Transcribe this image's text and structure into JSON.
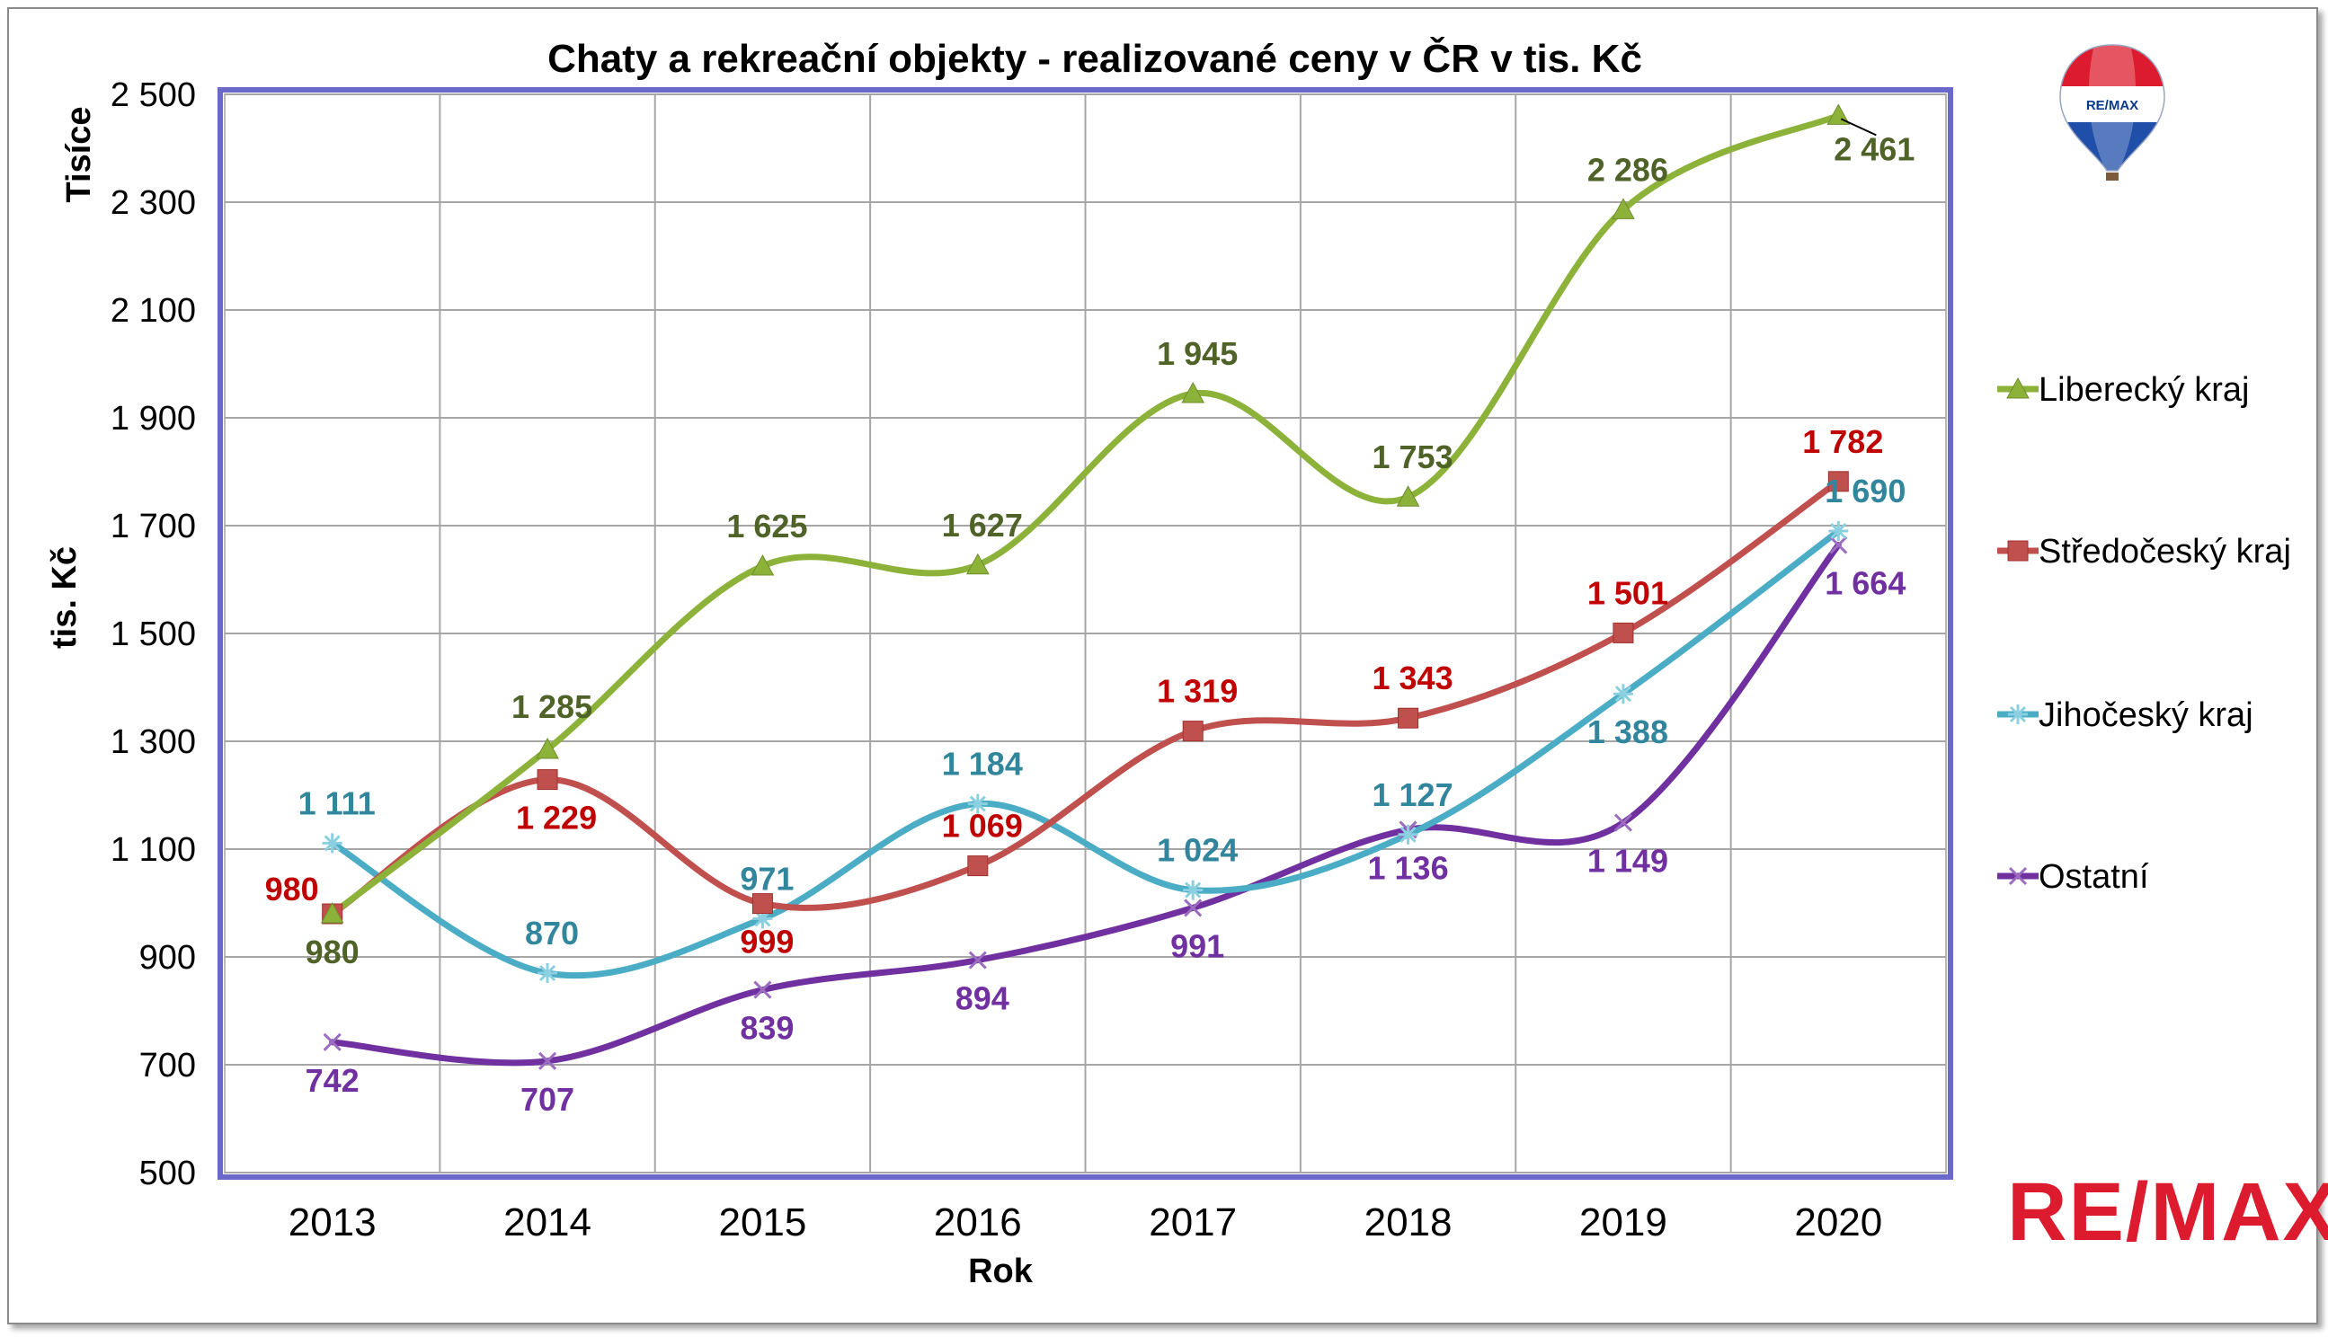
{
  "chart_data": {
    "type": "line",
    "title": "Chaty a rekreační objekty - realizované ceny v ČR v tis. Kč",
    "ylabel": "tis. Kč",
    "yunit_label": "Tisíce",
    "xlabel": "Rok",
    "ylim": [
      500,
      2500
    ],
    "yticks": [
      500,
      700,
      900,
      1100,
      1300,
      1500,
      1700,
      1900,
      2100,
      2300,
      2500
    ],
    "ytick_labels": [
      "500",
      "700",
      "900",
      "1 100",
      "1 300",
      "1 500",
      "1 700",
      "1 900",
      "2 100",
      "2 300",
      "2 500"
    ],
    "categories": [
      "2013",
      "2014",
      "2015",
      "2016",
      "2017",
      "2018",
      "2019",
      "2020"
    ],
    "grid": true,
    "legend_position": "right",
    "series": [
      {
        "name": "Liberecký kraj",
        "color": "#8cb23a",
        "label_color": "#4f6228",
        "marker": "triangle",
        "values": [
          980,
          1285,
          1625,
          1627,
          1945,
          1753,
          2286,
          2461
        ],
        "labels": [
          "980",
          "1 285",
          "1 625",
          "1 627",
          "1 945",
          "1 753",
          "2 286",
          "2 461"
        ]
      },
      {
        "name": "Středočeský kraj",
        "color": "#c0504d",
        "label_color": "#c00000",
        "marker": "square",
        "values": [
          980,
          1229,
          999,
          1069,
          1319,
          1343,
          1501,
          1782
        ],
        "labels": [
          "980",
          "1 229",
          "999",
          "1 069",
          "1 319",
          "1 343",
          "1 501",
          "1 782"
        ]
      },
      {
        "name": "Jihočeský kraj",
        "color": "#4bacc6",
        "label_color": "#31859c",
        "marker": "star",
        "values": [
          1111,
          870,
          971,
          1184,
          1024,
          1127,
          1388,
          1690
        ],
        "labels": [
          "1 111",
          "870",
          "971",
          "1 184",
          "1 024",
          "1 127",
          "1 388",
          "1 690"
        ]
      },
      {
        "name": "Ostatní",
        "color": "#7030a0",
        "label_color": "#7030a0",
        "marker": "x",
        "values": [
          742,
          707,
          839,
          894,
          991,
          1136,
          1149,
          1664
        ],
        "labels": [
          "742",
          "707",
          "839",
          "894",
          "991",
          "1 136",
          "1 149",
          "1 664"
        ]
      }
    ]
  },
  "branding": {
    "logo_text": "RE/MAX",
    "balloon_text": "RE/MAX",
    "logo_color": "#dc1c2e"
  }
}
